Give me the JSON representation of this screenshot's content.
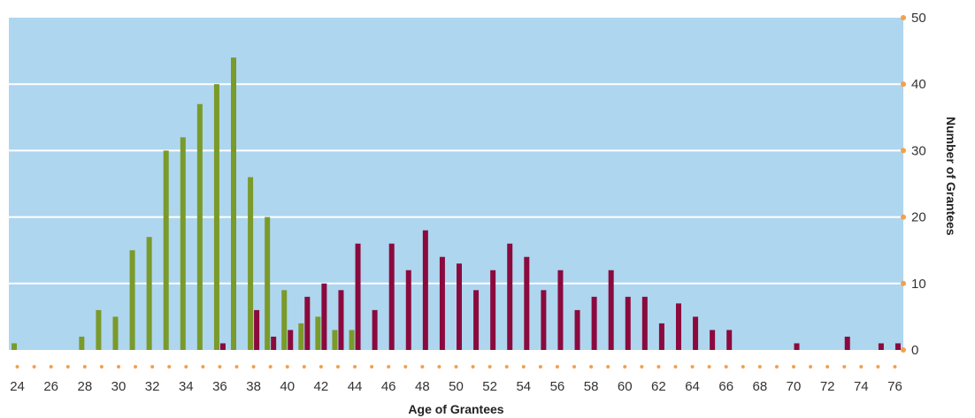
{
  "chart_data": {
    "type": "bar",
    "title": "",
    "xlabel": "Age of Grantees",
    "ylabel": "Number of Grantees",
    "ylim": [
      0,
      50
    ],
    "y_ticks": [
      0,
      10,
      20,
      30,
      40,
      50
    ],
    "grid": true,
    "x_tick_labels": [
      "24",
      "26",
      "28",
      "30",
      "32",
      "34",
      "36",
      "38",
      "40",
      "42",
      "44",
      "46",
      "48",
      "50",
      "52",
      "54",
      "56",
      "58",
      "60",
      "62",
      "64",
      "66",
      "68",
      "70",
      "72",
      "74",
      "76"
    ],
    "x": [
      24,
      25,
      26,
      27,
      28,
      29,
      30,
      31,
      32,
      33,
      34,
      35,
      36,
      37,
      38,
      39,
      40,
      41,
      42,
      43,
      44,
      45,
      46,
      47,
      48,
      49,
      50,
      51,
      52,
      53,
      54,
      55,
      56,
      57,
      58,
      59,
      60,
      61,
      62,
      63,
      64,
      65,
      66,
      67,
      68,
      69,
      70,
      71,
      72,
      73,
      74,
      75,
      76
    ],
    "series": [
      {
        "color": "#7a9a2a",
        "values": [
          1,
          0,
          0,
          0,
          2,
          6,
          5,
          15,
          17,
          30,
          32,
          37,
          40,
          44,
          26,
          20,
          9,
          4,
          5,
          3,
          3,
          0,
          0,
          0,
          0,
          0,
          0,
          0,
          0,
          0,
          0,
          0,
          0,
          0,
          0,
          0,
          0,
          0,
          0,
          0,
          0,
          0,
          0,
          0,
          0,
          0,
          0,
          0,
          0,
          0,
          0,
          0,
          0
        ]
      },
      {
        "color": "#8b0a3d",
        "values": [
          0,
          0,
          0,
          0,
          0,
          0,
          0,
          0,
          0,
          0,
          0,
          0,
          1,
          0,
          6,
          2,
          3,
          8,
          10,
          9,
          16,
          6,
          16,
          12,
          18,
          14,
          13,
          9,
          12,
          16,
          14,
          9,
          12,
          6,
          8,
          12,
          8,
          8,
          4,
          7,
          5,
          3,
          3,
          0,
          0,
          0,
          1,
          0,
          0,
          2,
          0,
          1,
          1
        ]
      }
    ]
  },
  "colors": {
    "plot_background": "#aed6ef",
    "gridline": "#ffffff",
    "tick_dot": "#f3a04a"
  }
}
